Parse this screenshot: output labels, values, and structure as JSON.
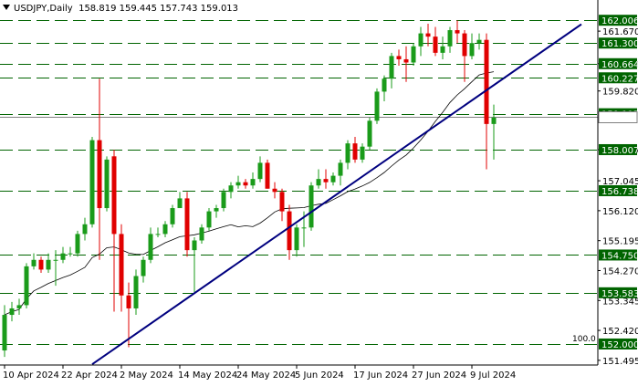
{
  "header": {
    "symbol": "USDJPY,Daily",
    "ohlc": "158.819 159.445 157.743 159.013"
  },
  "colors": {
    "bull": "#1a9b1a",
    "bear": "#e00000",
    "ma": "#000000",
    "trendline": "#00007f",
    "levels": "#006400",
    "level_label_bg": "#006400",
    "level_label_text": "#ffffff",
    "grid": "#c0c0c0"
  },
  "chart_data": {
    "type": "candlestick",
    "title": "USDJPY,Daily",
    "y_axis_ticks": [
      "161.670",
      "160.664",
      "159.820",
      "158.007",
      "157.045",
      "156.120",
      "155.195",
      "154.270",
      "153.345",
      "152.420",
      "151.495"
    ],
    "x_axis_ticks": [
      "10 Apr 2024",
      "22 Apr 2024",
      "2 May 2024",
      "14 May 2024",
      "24 May 2024",
      "5 Jun 2024",
      "17 Jun 2024",
      "27 Jun 2024",
      "9 Jul 2024"
    ],
    "ylim": [
      151.35,
      162.35
    ],
    "levels": [
      {
        "value": 162.006,
        "label": "162.006"
      },
      {
        "value": 161.3,
        "label": "161.300"
      },
      {
        "value": 160.664,
        "label": "160.664"
      },
      {
        "value": 160.227,
        "label": "160.227"
      },
      {
        "value": 159.117,
        "label": "159.117"
      },
      {
        "value": 158.007,
        "label": "158.007"
      },
      {
        "value": 156.738,
        "label": "156.738"
      },
      {
        "value": 154.75,
        "label": "154.750"
      },
      {
        "value": 153.583,
        "label": "153.583"
      },
      {
        "value": 152.0,
        "label": "152.000"
      }
    ],
    "level_note": "100.0",
    "current_price": 159.013,
    "trendline": {
      "start": {
        "date": "2 May 2024",
        "price": 152.0
      },
      "end": {
        "date": "12 Jul 2024",
        "price": 160.0
      }
    },
    "series": [
      {
        "type": "candles",
        "dates": [
          "10 Apr",
          "11 Apr",
          "12 Apr",
          "15 Apr",
          "16 Apr",
          "17 Apr",
          "18 Apr",
          "19 Apr",
          "22 Apr",
          "23 Apr",
          "24 Apr",
          "25 Apr",
          "26 Apr",
          "29 Apr",
          "30 Apr",
          "1 May",
          "2 May",
          "3 May",
          "6 May",
          "7 May",
          "8 May",
          "9 May",
          "10 May",
          "13 May",
          "14 May",
          "15 May",
          "16 May",
          "17 May",
          "20 May",
          "21 May",
          "22 May",
          "23 May",
          "24 May",
          "27 May",
          "28 May",
          "29 May",
          "30 May",
          "31 May",
          "3 Jun",
          "4 Jun",
          "5 Jun",
          "6 Jun",
          "7 Jun",
          "10 Jun",
          "11 Jun",
          "12 Jun",
          "13 Jun",
          "14 Jun",
          "17 Jun",
          "18 Jun",
          "19 Jun",
          "20 Jun",
          "21 Jun",
          "24 Jun",
          "25 Jun",
          "26 Jun",
          "27 Jun",
          "28 Jun",
          "1 Jul",
          "2 Jul",
          "3 Jul",
          "4 Jul",
          "5 Jul",
          "8 Jul",
          "9 Jul",
          "10 Jul",
          "11 Jul",
          "12 Jul"
        ],
        "ohlc": [
          [
            151.8,
            153.2,
            151.6,
            152.9
          ],
          [
            152.9,
            153.3,
            152.7,
            153.1
          ],
          [
            153.1,
            153.4,
            152.9,
            153.2
          ],
          [
            153.2,
            154.5,
            153.1,
            154.4
          ],
          [
            154.4,
            154.8,
            154.3,
            154.6
          ],
          [
            154.6,
            154.7,
            154.2,
            154.3
          ],
          [
            154.3,
            154.8,
            154.2,
            154.6
          ],
          [
            154.6,
            154.9,
            153.8,
            154.6
          ],
          [
            154.6,
            155.0,
            154.5,
            154.8
          ],
          [
            154.8,
            155.0,
            154.7,
            154.8
          ],
          [
            154.8,
            155.5,
            154.7,
            155.4
          ],
          [
            155.4,
            155.9,
            155.2,
            155.7
          ],
          [
            155.7,
            158.4,
            155.6,
            158.3
          ],
          [
            158.3,
            160.2,
            154.6,
            156.2
          ],
          [
            156.2,
            157.8,
            156.1,
            157.7
          ],
          [
            157.8,
            158.0,
            153.0,
            155.4
          ],
          [
            155.4,
            155.7,
            153.0,
            153.5
          ],
          [
            153.5,
            153.9,
            151.9,
            153.1
          ],
          [
            153.1,
            154.3,
            152.9,
            154.1
          ],
          [
            154.1,
            154.7,
            153.9,
            154.6
          ],
          [
            154.6,
            155.6,
            154.5,
            155.4
          ],
          [
            155.4,
            155.6,
            155.3,
            155.4
          ],
          [
            155.4,
            155.8,
            155.3,
            155.7
          ],
          [
            155.7,
            156.3,
            155.6,
            156.2
          ],
          [
            156.2,
            156.7,
            156.2,
            156.5
          ],
          [
            156.5,
            156.7,
            154.7,
            154.9
          ],
          [
            154.9,
            155.3,
            153.6,
            155.2
          ],
          [
            155.2,
            155.7,
            155.1,
            155.6
          ],
          [
            155.6,
            156.2,
            155.5,
            156.1
          ],
          [
            156.1,
            156.3,
            155.9,
            156.2
          ],
          [
            156.2,
            156.8,
            156.1,
            156.7
          ],
          [
            156.7,
            157.0,
            156.5,
            156.9
          ],
          [
            156.9,
            157.2,
            156.8,
            157.0
          ],
          [
            157.0,
            157.1,
            156.8,
            156.9
          ],
          [
            156.9,
            157.3,
            156.8,
            157.1
          ],
          [
            157.1,
            157.8,
            157.0,
            157.6
          ],
          [
            157.6,
            157.7,
            156.8,
            156.8
          ],
          [
            156.8,
            157.0,
            156.5,
            156.7
          ],
          [
            156.7,
            156.8,
            155.8,
            156.1
          ],
          [
            156.1,
            156.3,
            154.6,
            154.9
          ],
          [
            154.9,
            155.7,
            154.7,
            155.6
          ],
          [
            155.6,
            156.1,
            155.0,
            155.6
          ],
          [
            155.6,
            157.0,
            155.5,
            156.9
          ],
          [
            156.9,
            157.4,
            156.8,
            157.1
          ],
          [
            157.1,
            157.4,
            156.8,
            157.0
          ],
          [
            157.0,
            157.3,
            156.9,
            157.2
          ],
          [
            157.2,
            157.7,
            156.9,
            157.6
          ],
          [
            157.6,
            158.3,
            157.4,
            158.2
          ],
          [
            158.2,
            158.4,
            157.6,
            157.7
          ],
          [
            157.7,
            158.2,
            157.6,
            158.1
          ],
          [
            158.1,
            159.0,
            158.0,
            158.9
          ],
          [
            158.9,
            159.9,
            158.8,
            159.8
          ],
          [
            159.8,
            160.3,
            159.5,
            160.2
          ],
          [
            160.2,
            161.0,
            159.9,
            160.9
          ],
          [
            160.9,
            161.1,
            160.6,
            160.8
          ],
          [
            160.8,
            161.2,
            160.1,
            160.7
          ],
          [
            160.7,
            161.3,
            160.6,
            161.2
          ],
          [
            161.2,
            161.8,
            160.9,
            161.6
          ],
          [
            161.6,
            161.9,
            161.2,
            161.5
          ],
          [
            161.5,
            161.8,
            160.9,
            161.0
          ],
          [
            161.0,
            161.5,
            160.8,
            161.2
          ],
          [
            161.2,
            161.8,
            161.0,
            161.7
          ],
          [
            161.7,
            162.0,
            161.3,
            161.6
          ],
          [
            161.6,
            161.7,
            160.1,
            160.9
          ],
          [
            160.9,
            161.6,
            160.8,
            161.3
          ],
          [
            161.3,
            161.6,
            161.1,
            161.4
          ],
          [
            161.4,
            161.6,
            157.4,
            158.8
          ],
          [
            158.8,
            159.4,
            157.7,
            159.0
          ]
        ]
      },
      {
        "type": "moving_average",
        "note": "shown as a single line, no legend"
      }
    ]
  }
}
